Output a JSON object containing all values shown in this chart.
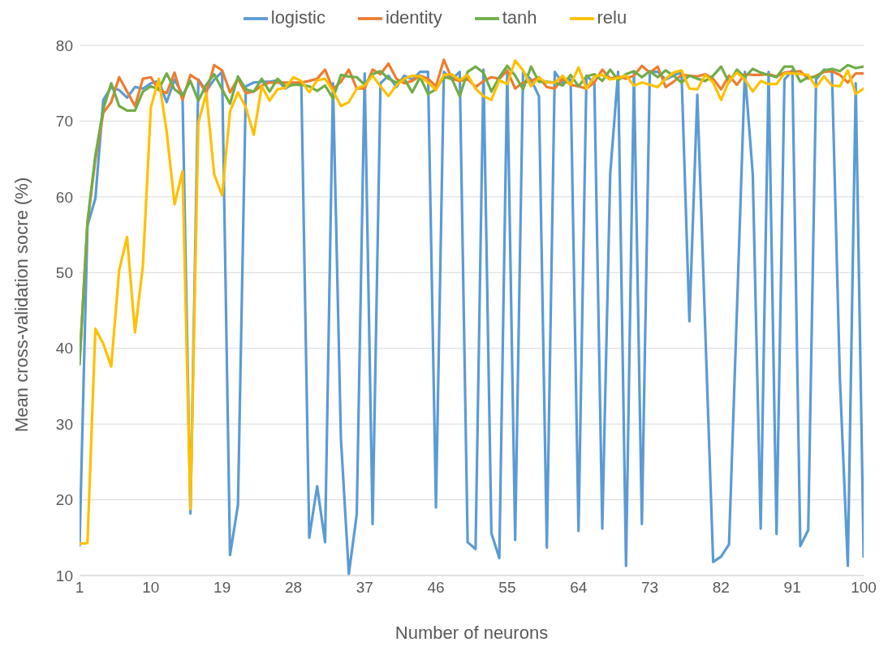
{
  "chart_data": {
    "type": "line",
    "xlabel": "Number of neurons",
    "ylabel": "Mean cross-validation socre (%)",
    "x": [
      1,
      2,
      3,
      4,
      5,
      6,
      7,
      8,
      9,
      10,
      11,
      12,
      13,
      14,
      15,
      16,
      17,
      18,
      19,
      20,
      21,
      22,
      23,
      24,
      25,
      26,
      27,
      28,
      29,
      30,
      31,
      32,
      33,
      34,
      35,
      36,
      37,
      38,
      39,
      40,
      41,
      42,
      43,
      44,
      45,
      46,
      47,
      48,
      49,
      50,
      51,
      52,
      53,
      54,
      55,
      56,
      57,
      58,
      59,
      60,
      61,
      62,
      63,
      64,
      65,
      66,
      67,
      68,
      69,
      70,
      71,
      72,
      73,
      74,
      75,
      76,
      77,
      78,
      79,
      80,
      81,
      82,
      83,
      84,
      85,
      86,
      87,
      88,
      89,
      90,
      91,
      92,
      93,
      94,
      95,
      96,
      97,
      98,
      99,
      100
    ],
    "xlim": [
      1,
      100
    ],
    "xticks": [
      1,
      10,
      19,
      28,
      37,
      46,
      55,
      64,
      73,
      82,
      91,
      100
    ],
    "ylim": [
      10,
      80
    ],
    "yticks": [
      10,
      20,
      30,
      40,
      50,
      60,
      70,
      80
    ],
    "grid": "y",
    "legend": "top",
    "marker": "none",
    "line_style": "solid",
    "series": [
      {
        "name": "logistic",
        "color": "#5b9bd5",
        "values": [
          14,
          56.2,
          59.8,
          72.8,
          74.5,
          74.1,
          73.1,
          74.5,
          74.3,
          75,
          75.3,
          72.5,
          75.5,
          73.5,
          18.2,
          75.5,
          74,
          75.5,
          76.5,
          12.7,
          19.3,
          74.6,
          75.1,
          75.2,
          75.2,
          75.4,
          74.3,
          75,
          75,
          15,
          21.8,
          14.4,
          75,
          28.1,
          10.2,
          18.1,
          76.3,
          16.8,
          75,
          76,
          74.5,
          76,
          75.5,
          76.5,
          76.5,
          19,
          76.5,
          75.5,
          76.5,
          14.4,
          13.5,
          76.8,
          15.6,
          12.3,
          76.5,
          14.7,
          76.5,
          75.5,
          73.3,
          13.7,
          76.5,
          75,
          75.5,
          15.9,
          76,
          75,
          16.2,
          63,
          76.5,
          11.3,
          76.3,
          16.8,
          76.5,
          76.5,
          75.5,
          76,
          76.5,
          43.6,
          73.5,
          42.5,
          11.8,
          12.5,
          14.1,
          45,
          76.5,
          63,
          16.2,
          76.5,
          15.5,
          75.5,
          76.7,
          13.9,
          16,
          75.5,
          76.8,
          76.5,
          36,
          11.3,
          75,
          12.5
        ]
      },
      {
        "name": "identity",
        "color": "#ed7d31",
        "values": [
          38.2,
          56.5,
          65,
          71.1,
          72.5,
          75.8,
          73.9,
          72,
          75.6,
          75.8,
          74.1,
          73.7,
          76.4,
          72.8,
          76.1,
          75.4,
          73.7,
          77.4,
          76.7,
          73.8,
          75.6,
          73.7,
          73.9,
          74.7,
          75.1,
          75.1,
          75.1,
          75.1,
          75.1,
          75.3,
          75.6,
          76.8,
          74.2,
          75.2,
          76.8,
          74.3,
          74.3,
          76.8,
          76.2,
          77.6,
          75.6,
          75,
          75.3,
          76,
          75.6,
          74.6,
          78.1,
          75.6,
          75.3,
          75.6,
          74.5,
          75.3,
          75.8,
          75.6,
          76.7,
          74.3,
          75.1,
          75.3,
          75.8,
          74.5,
          74.3,
          75.6,
          74.8,
          74.6,
          74.3,
          75.1,
          76.8,
          75.6,
          75.9,
          75.6,
          76,
          77.3,
          76.4,
          77.2,
          74.5,
          75.2,
          76.1,
          76,
          75.9,
          76.2,
          75.6,
          74.2,
          76,
          74.8,
          76.2,
          76.1,
          76.1,
          76.2,
          75.9,
          76.4,
          76.5,
          76.6,
          75.6,
          76,
          76.5,
          76.6,
          76.1,
          75.1,
          76.3,
          76.3
        ]
      },
      {
        "name": "tanh",
        "color": "#70ad47",
        "values": [
          37.9,
          56.7,
          65.5,
          71.6,
          75,
          72,
          71.4,
          71.4,
          73.9,
          74.6,
          74.2,
          76.3,
          74.2,
          73.4,
          75.3,
          72.7,
          74.8,
          76.2,
          74.2,
          72.3,
          75.9,
          74.2,
          73.9,
          75.6,
          73.9,
          75.6,
          74.6,
          74.8,
          74.8,
          74.6,
          74,
          74.7,
          73,
          76.1,
          75.9,
          75.8,
          74.8,
          76.2,
          76.6,
          75.6,
          75.1,
          75.6,
          73.8,
          75.8,
          73.6,
          74.2,
          75.8,
          75.6,
          73.3,
          76.5,
          77.2,
          76.4,
          73.9,
          75.8,
          77.3,
          76,
          74.2,
          77.2,
          75.2,
          75.2,
          75.1,
          74.7,
          76.1,
          74.6,
          75.9,
          76.2,
          75.3,
          76.8,
          75.4,
          76.2,
          76.6,
          75.8,
          76.6,
          75.8,
          76.7,
          76,
          75.1,
          76,
          75.6,
          75.3,
          76,
          77.2,
          75.1,
          76.8,
          75.8,
          76.9,
          76.4,
          76.1,
          75.8,
          77.2,
          77.2,
          75.2,
          75.8,
          75.8,
          76.7,
          76.9,
          76.6,
          77.4,
          77,
          77.2
        ]
      },
      {
        "name": "relu",
        "color": "#ffc000",
        "values": [
          14.2,
          14.3,
          42.6,
          40.6,
          37.6,
          50.3,
          54.7,
          42.1,
          50.9,
          71.8,
          75.6,
          68.6,
          59,
          63.4,
          18.8,
          69.8,
          73.7,
          63,
          60.2,
          71.3,
          73.8,
          71.8,
          68.2,
          74.6,
          72.7,
          74.2,
          74.4,
          75.8,
          75.3,
          73.8,
          75.4,
          75.6,
          74,
          72,
          72.5,
          74.3,
          74.7,
          76,
          74.6,
          73.3,
          74.7,
          75.6,
          76,
          75.9,
          75.1,
          74.1,
          76.1,
          76.2,
          75.4,
          76.1,
          74.3,
          73.3,
          72.8,
          75.4,
          74.9,
          78,
          76.7,
          74.6,
          75.7,
          75.1,
          75.1,
          76,
          74.8,
          77.1,
          74.3,
          75.9,
          76.1,
          75.5,
          75.7,
          76,
          74.7,
          75.1,
          74.8,
          74.5,
          75.6,
          76.4,
          76.7,
          74.3,
          74.2,
          76.1,
          75.1,
          72.8,
          75.3,
          76.4,
          75.5,
          73.9,
          75.3,
          74.9,
          74.9,
          76.3,
          76.3,
          76.2,
          76.1,
          74.5,
          75.9,
          74.7,
          74.6,
          76.7,
          73.6,
          74.3
        ]
      }
    ]
  }
}
